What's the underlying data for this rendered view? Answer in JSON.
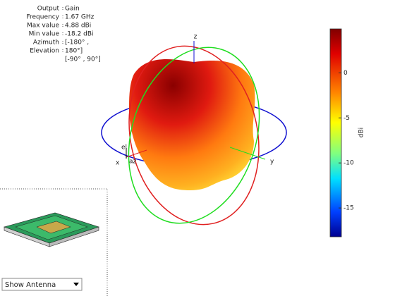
{
  "info": [
    {
      "label": "Output",
      "value": "Gain"
    },
    {
      "label": "Frequency",
      "value": "1.67 GHz"
    },
    {
      "label": "Max value",
      "value": "4.88 dBi"
    },
    {
      "label": "Min value",
      "value": "-18.2 dBi"
    },
    {
      "label": "Azimuth",
      "value": "[-180° ,"
    },
    {
      "label": "Elevation",
      "value": "180°]"
    },
    {
      "value": "[-90° , 90°]"
    }
  ],
  "axes": {
    "x": "x",
    "y": "y",
    "z": "z",
    "el": "el",
    "az": "az"
  },
  "colorbar": {
    "label": "dBi",
    "lim": [
      -18.2,
      4.88
    ],
    "ticks": [
      0,
      -5,
      -10,
      -15
    ]
  },
  "dropdown": {
    "selected": "Show Antenna"
  }
}
